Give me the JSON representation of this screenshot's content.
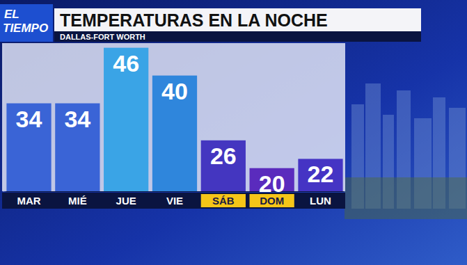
{
  "logo": {
    "lines": [
      "EL",
      "TIEMPO"
    ]
  },
  "chart_data": {
    "type": "bar",
    "title": "TEMPERATURAS EN LA NOCHE",
    "subtitle": "DALLAS-FORT WORTH",
    "categories": [
      "MAR",
      "MIÉ",
      "JUE",
      "VIE",
      "SÁB",
      "DOM",
      "LUN"
    ],
    "values": [
      34,
      34,
      46,
      40,
      26,
      20,
      22
    ],
    "colors": [
      "#3a64d6",
      "#3a64d6",
      "#3aa4e6",
      "#2f86dc",
      "#4436c0",
      "#5a2bbd",
      "#4534c4"
    ],
    "ylim": [
      15,
      47
    ],
    "yticks": [],
    "grid": false,
    "data_labels": true,
    "tick_labels": "x"
  }
}
